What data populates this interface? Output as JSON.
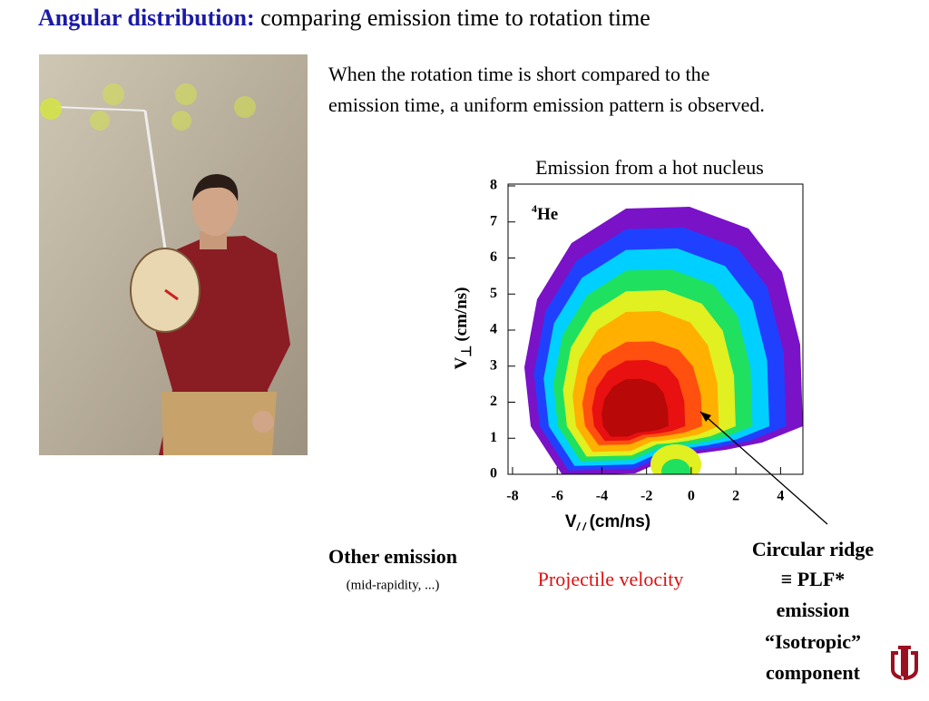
{
  "header": {
    "title_bold": "Angular distribution:",
    "title_rest": "comparing emission time to rotation time"
  },
  "intro": {
    "lines": [
      "When the rotation time is short compared to the",
      "emission time, a uniform emission pattern is observed."
    ]
  },
  "chart_data": {
    "type": "heatmap",
    "title": "Emission from a hot nucleus",
    "particle": {
      "mass": "4",
      "symbol": "He"
    },
    "xlabel": {
      "main": "V",
      "sub": "/ /",
      "unit": "(cm/ns)"
    },
    "ylabel": {
      "main": "V",
      "sub": "⊥",
      "unit": "(cm/ns)"
    },
    "xlim": [
      -8.2,
      5
    ],
    "xticks": [
      -8,
      -6,
      -4,
      -2,
      0,
      2,
      4
    ],
    "ylim": [
      0,
      8
    ],
    "yticks": [
      0,
      1,
      2,
      3,
      4,
      5,
      6,
      7,
      8
    ]
  },
  "annotations": {
    "other": "Other emission",
    "other_note": "(mid-rapidity, ...)",
    "projectile": "Projectile velocity",
    "ridge": [
      "Circular ridge",
      "≡ PLF*",
      "emission",
      "“Isotropic”",
      "component"
    ]
  }
}
